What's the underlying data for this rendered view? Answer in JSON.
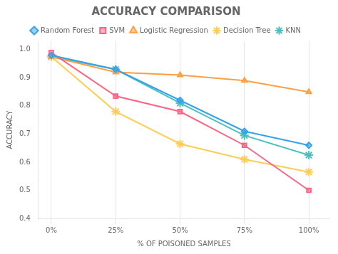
{
  "chart_data": {
    "type": "line",
    "title": "ACCURACY COMPARISON",
    "xlabel": "% OF POISONED SAMPLES",
    "ylabel": "ACCURACY",
    "x": [
      0,
      25,
      50,
      75,
      100
    ],
    "xlim": [
      -5,
      108
    ],
    "xticks": [
      {
        "value": 0,
        "label": "0%"
      },
      {
        "value": 25,
        "label": "25%"
      },
      {
        "value": 50,
        "label": "50%"
      },
      {
        "value": 75,
        "label": "75%"
      },
      {
        "value": 100,
        "label": "100%"
      }
    ],
    "ylim": [
      0.4,
      1.03
    ],
    "yticks": [
      0.4,
      0.5,
      0.6,
      0.7,
      0.8,
      0.9,
      {
        "value": 1.0,
        "label": "1.0"
      }
    ],
    "grid": "x",
    "legend": "top",
    "series": [
      {
        "name": "Random Forest",
        "marker": "diamond",
        "values": [
          0.98,
          0.93,
          0.82,
          0.71,
          0.66
        ]
      },
      {
        "name": "SVM",
        "marker": "square",
        "values": [
          0.99,
          0.835,
          0.78,
          0.66,
          0.5
        ]
      },
      {
        "name": "Logistic Regression",
        "marker": "triangle",
        "values": [
          0.975,
          0.92,
          0.91,
          0.89,
          0.85
        ]
      },
      {
        "name": "Decision Tree",
        "marker": "star",
        "values": [
          0.975,
          0.78,
          0.665,
          0.61,
          0.565
        ]
      },
      {
        "name": "KNN",
        "marker": "star",
        "values": [
          0.975,
          0.93,
          0.81,
          0.695,
          0.625
        ]
      }
    ]
  }
}
